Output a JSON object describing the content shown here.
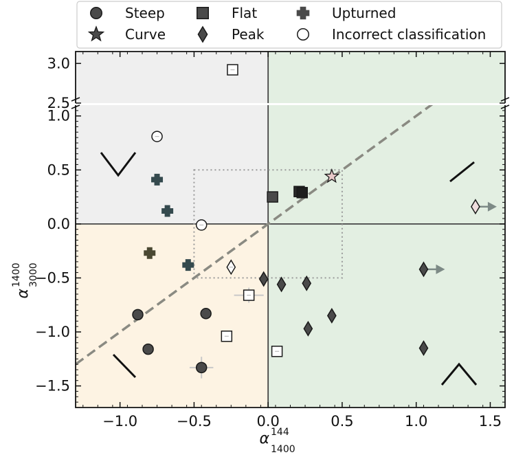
{
  "chart_data": {
    "type": "scatter",
    "xlabel": "α",
    "xlabel_sub": "1400",
    "xlabel_sup": "144",
    "ylabel": "α",
    "ylabel_sub": "3000",
    "ylabel_sup": "1400",
    "xlim": [
      -1.3,
      1.6
    ],
    "ylim_lower": [
      -1.7,
      1.1
    ],
    "ylim_upper": [
      2.5,
      3.15
    ],
    "x_ticks": [
      "−1.0",
      "−0.5",
      "0.0",
      "0.5",
      "1.0",
      "1.5"
    ],
    "x_tick_values": [
      -1.0,
      -0.5,
      0.0,
      0.5,
      1.0,
      1.5
    ],
    "y_ticks_lower": [
      "−1.5",
      "−1.0",
      "−0.5",
      "0.0",
      "0.5",
      "1.0"
    ],
    "y_tick_values_lower": [
      -1.5,
      -1.0,
      -0.5,
      0.0,
      0.5,
      1.0
    ],
    "y_ticks_upper": [
      "2.5",
      "3.0"
    ],
    "y_tick_values_upper": [
      2.5,
      3.0
    ],
    "legend": {
      "placement": "top-center",
      "entries": [
        {
          "marker": "circle",
          "label": "Steep"
        },
        {
          "marker": "square",
          "label": "Flat"
        },
        {
          "marker": "plus",
          "label": "Upturned"
        },
        {
          "marker": "star",
          "label": "Curve"
        },
        {
          "marker": "diamond",
          "label": "Peak"
        },
        {
          "marker": "open-circle",
          "label": "Incorrect classification"
        }
      ]
    },
    "regions": [
      {
        "name": "upper-left",
        "color": "#efefef"
      },
      {
        "name": "lower-left",
        "color": "#fdf3e3"
      },
      {
        "name": "right",
        "color": "#e3efe2"
      }
    ],
    "dashed_line": {
      "slope": 1.0,
      "intercept": 0.0,
      "color": "#8a8a82"
    },
    "dotted_box": {
      "x": [
        -0.5,
        0.5
      ],
      "y": [
        -0.5,
        0.5
      ]
    },
    "points": [
      {
        "class": "Steep",
        "marker": "circle",
        "x": -0.88,
        "y": -0.84,
        "color": "#4a4a4a"
      },
      {
        "class": "Steep",
        "marker": "circle",
        "x": -0.81,
        "y": -1.16,
        "color": "#4a4a4a"
      },
      {
        "class": "Steep",
        "marker": "circle",
        "x": -0.42,
        "y": -0.83,
        "color": "#4a4a4a"
      },
      {
        "class": "Steep",
        "marker": "circle",
        "x": -0.45,
        "y": -1.33,
        "color": "#4a4a4a",
        "xerr": 0.08,
        "yerr": 0.1
      },
      {
        "class": "Steep",
        "marker": "open-circle",
        "x": -0.75,
        "y": 0.81,
        "color": "#ffffff"
      },
      {
        "class": "Steep",
        "marker": "open-circle",
        "x": -0.45,
        "y": -0.01,
        "color": "#ffffff"
      },
      {
        "class": "Flat",
        "marker": "square",
        "x": 0.03,
        "y": 0.25,
        "color": "#4a4a4a"
      },
      {
        "class": "Flat",
        "marker": "square",
        "x": 0.21,
        "y": 0.3,
        "color": "#2a2a2a"
      },
      {
        "class": "Flat",
        "marker": "square",
        "x": 0.23,
        "y": 0.29,
        "color": "#1e1e1e"
      },
      {
        "class": "Flat",
        "marker": "open-square",
        "x": -0.13,
        "y": -0.66,
        "color": "#ffffff",
        "xerr": 0.1,
        "yerr": 0.07
      },
      {
        "class": "Flat",
        "marker": "open-square",
        "x": -0.28,
        "y": -1.04,
        "color": "#ffffff"
      },
      {
        "class": "Flat",
        "marker": "open-square",
        "x": 0.06,
        "y": -1.18,
        "color": "#ffffff"
      },
      {
        "class": "Flat",
        "marker": "open-square",
        "x": -0.24,
        "y": 2.92,
        "color": "#ffffff"
      },
      {
        "class": "Upturned",
        "marker": "plus",
        "x": -0.75,
        "y": 0.41,
        "color": "#354a4e"
      },
      {
        "class": "Upturned",
        "marker": "plus",
        "x": -0.68,
        "y": 0.12,
        "color": "#354a4e"
      },
      {
        "class": "Upturned",
        "marker": "plus",
        "x": -0.8,
        "y": -0.27,
        "color": "#4a4832"
      },
      {
        "class": "Upturned",
        "marker": "plus",
        "x": -0.54,
        "y": -0.38,
        "color": "#354a4e"
      },
      {
        "class": "Curve",
        "marker": "star",
        "x": 0.43,
        "y": 0.44,
        "color": "#e8c9c9"
      },
      {
        "class": "Peak",
        "marker": "diamond",
        "x": -0.03,
        "y": -0.51,
        "color": "#4a4a4a"
      },
      {
        "class": "Peak",
        "marker": "diamond",
        "x": 0.09,
        "y": -0.56,
        "color": "#4a4a4a"
      },
      {
        "class": "Peak",
        "marker": "diamond",
        "x": 0.26,
        "y": -0.55,
        "color": "#4a4a4a"
      },
      {
        "class": "Peak",
        "marker": "diamond",
        "x": 0.27,
        "y": -0.97,
        "color": "#4a4a4a"
      },
      {
        "class": "Peak",
        "marker": "diamond",
        "x": 0.43,
        "y": -0.85,
        "color": "#4a4a4a"
      },
      {
        "class": "Peak",
        "marker": "diamond",
        "x": 1.05,
        "y": -1.15,
        "color": "#4a4a4a"
      },
      {
        "class": "Peak",
        "marker": "diamond",
        "x": 1.05,
        "y": -0.42,
        "color": "#4a4a4a",
        "limit": "right"
      },
      {
        "class": "Peak",
        "marker": "open-diamond",
        "x": -0.25,
        "y": -0.4,
        "color": "#ffffff"
      },
      {
        "class": "Peak",
        "marker": "diamond",
        "x": 1.4,
        "y": 0.16,
        "color": "#f0dede",
        "limit": "right"
      }
    ]
  }
}
